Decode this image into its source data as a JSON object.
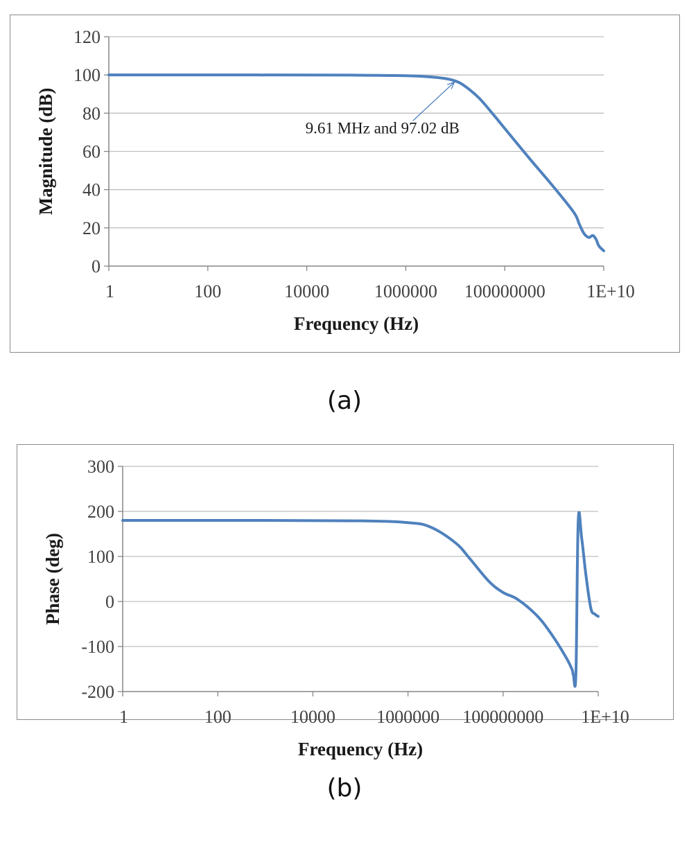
{
  "captions": {
    "a": "(a)",
    "b": "(b)"
  },
  "colors": {
    "series": "#4f81bd",
    "grid": "#bfbfbf",
    "axis": "#868686",
    "annotation_arrow": "#4f81bd"
  },
  "chart_data": [
    {
      "type": "line",
      "panel": "a",
      "title": "",
      "xlabel": "Frequency (Hz)",
      "ylabel": "Magnitude (dB)",
      "x_scale": "log",
      "xlim": [
        1,
        10000000000
      ],
      "ylim": [
        0,
        120
      ],
      "x_ticks": [
        1,
        100,
        10000,
        1000000,
        100000000,
        10000000000
      ],
      "x_tick_labels": [
        "1",
        "100",
        "10000",
        "1000000",
        "100000000",
        "1E+10"
      ],
      "y_ticks": [
        0,
        20,
        40,
        60,
        80,
        100,
        120
      ],
      "y_tick_labels": [
        "0",
        "20",
        "40",
        "60",
        "80",
        "100",
        "120"
      ],
      "grid": "horizontal",
      "legend": "none",
      "annotations": [
        {
          "text": "9.61 MHz and 97.02 dB",
          "x": 9610000,
          "y": 97.02
        }
      ],
      "series": [
        {
          "x": [
            1,
            1000,
            100000,
            1000000,
            3000000,
            6000000,
            9610000,
            15000000,
            30000000,
            60000000,
            100000000,
            300000000,
            1000000000,
            2500000000,
            3200000000,
            4000000000,
            5000000000,
            6000000000,
            7000000000,
            8000000000,
            10000000000
          ],
          "y": [
            100,
            100,
            99.9,
            99.6,
            99.0,
            98.2,
            97.0,
            94.5,
            88.0,
            79.0,
            72.0,
            57.0,
            41.0,
            28.0,
            22.0,
            17.0,
            15.0,
            16.0,
            14.0,
            10.5,
            8.0
          ]
        }
      ]
    },
    {
      "type": "line",
      "panel": "b",
      "title": "",
      "xlabel": "Frequency (Hz)",
      "ylabel": "Phase (deg)",
      "x_scale": "log",
      "xlim": [
        1,
        10000000000
      ],
      "ylim": [
        -200,
        300
      ],
      "x_ticks": [
        1,
        100,
        10000,
        1000000,
        100000000,
        10000000000
      ],
      "x_tick_labels": [
        "1",
        "100",
        "10000",
        "1000000",
        "100000000",
        "1E+10"
      ],
      "y_ticks": [
        -200,
        -100,
        0,
        100,
        200,
        300
      ],
      "y_tick_labels": [
        "-200",
        "-100",
        "0",
        "100",
        "200",
        "300"
      ],
      "grid": "horizontal",
      "legend": "none",
      "series": [
        {
          "x": [
            1,
            1000,
            100000,
            1000000,
            3000000,
            10000000,
            20000000,
            50000000,
            100000000,
            200000000,
            500000000,
            1000000000,
            2000000000,
            2800000000,
            3000000000,
            3400000000,
            3800000000,
            4500000000,
            5500000000,
            7000000000,
            8500000000,
            10000000000
          ],
          "y": [
            180,
            180,
            179,
            175,
            165,
            130,
            95,
            45,
            20,
            5,
            -30,
            -70,
            -120,
            -150,
            -163,
            -160,
            178,
            140,
            60,
            -15,
            -28,
            -33
          ]
        }
      ]
    }
  ]
}
